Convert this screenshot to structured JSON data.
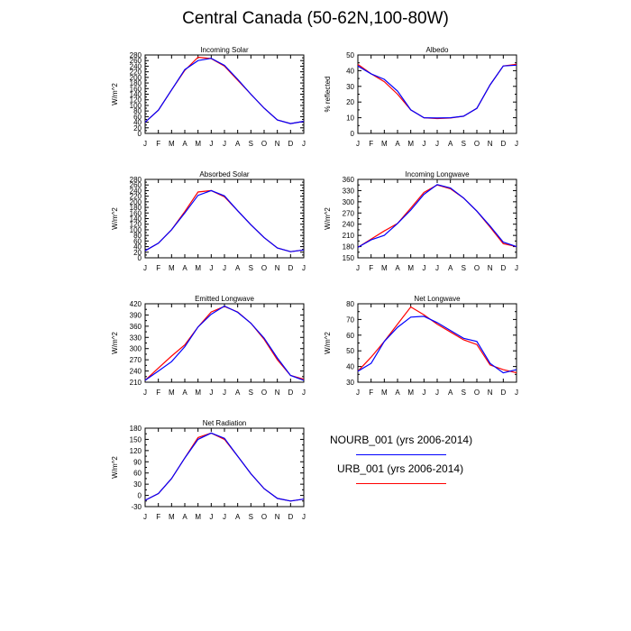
{
  "title": "Central Canada (50-62N,100-80W)",
  "legend": {
    "entries": [
      {
        "label": "NOURB_001 (yrs 2006-2014)",
        "color": "#0000ff"
      },
      {
        "label": "URB_001 (yrs 2006-2014)",
        "color": "#ff0000"
      }
    ]
  },
  "chart_data": [
    {
      "type": "line",
      "title": "Incoming Solar",
      "ylabel": "W/m^2",
      "ylim": [
        0,
        280
      ],
      "yticks": [
        0,
        20,
        40,
        60,
        80,
        100,
        120,
        140,
        160,
        180,
        200,
        220,
        240,
        260,
        280
      ],
      "categories": [
        "J",
        "F",
        "M",
        "A",
        "M",
        "J",
        "J",
        "A",
        "S",
        "O",
        "N",
        "D",
        "J"
      ],
      "series": [
        {
          "name": "URB_001 (yrs 2006-2014)",
          "color": "#ff0000",
          "values": [
            40,
            83,
            155,
            225,
            272,
            267,
            240,
            190,
            140,
            90,
            48,
            35,
            43
          ]
        },
        {
          "name": "NOURB_001 (yrs 2006-2014)",
          "color": "#0000ff",
          "values": [
            40,
            83,
            155,
            228,
            260,
            268,
            243,
            193,
            140,
            90,
            48,
            35,
            43
          ]
        }
      ]
    },
    {
      "type": "line",
      "title": "Albedo",
      "ylabel": "% reflected",
      "ylim": [
        0,
        50
      ],
      "yticks": [
        0,
        10,
        20,
        30,
        40,
        50
      ],
      "categories": [
        "J",
        "F",
        "M",
        "A",
        "M",
        "J",
        "J",
        "A",
        "S",
        "O",
        "N",
        "D",
        "J"
      ],
      "series": [
        {
          "name": "URB_001 (yrs 2006-2014)",
          "color": "#ff0000",
          "values": [
            44,
            38,
            33,
            25,
            15,
            10,
            9.5,
            9.8,
            11,
            16,
            31,
            43,
            44
          ]
        },
        {
          "name": "NOURB_001 (yrs 2006-2014)",
          "color": "#0000ff",
          "values": [
            43,
            38,
            34.5,
            27,
            15,
            10,
            9.8,
            10,
            11,
            16,
            31,
            43,
            43.5
          ]
        }
      ]
    },
    {
      "type": "line",
      "title": "Absorbed Solar",
      "ylabel": "W/m^2",
      "ylim": [
        0,
        280
      ],
      "yticks": [
        0,
        20,
        40,
        60,
        80,
        100,
        120,
        140,
        160,
        180,
        200,
        220,
        240,
        260,
        280
      ],
      "categories": [
        "J",
        "F",
        "M",
        "A",
        "M",
        "J",
        "J",
        "A",
        "S",
        "O",
        "N",
        "D",
        "J"
      ],
      "series": [
        {
          "name": "URB_001 (yrs 2006-2014)",
          "color": "#ff0000",
          "values": [
            25,
            52,
            100,
            165,
            235,
            240,
            218,
            168,
            118,
            72,
            35,
            22,
            28
          ]
        },
        {
          "name": "NOURB_001 (yrs 2006-2014)",
          "color": "#0000ff",
          "values": [
            25,
            52,
            100,
            160,
            223,
            240,
            221,
            168,
            118,
            72,
            35,
            22,
            28
          ]
        }
      ]
    },
    {
      "type": "line",
      "title": "Incoming Longwave",
      "ylabel": "W/m^2",
      "ylim": [
        150,
        360
      ],
      "yticks": [
        150,
        180,
        210,
        240,
        270,
        300,
        330,
        360
      ],
      "categories": [
        "J",
        "F",
        "M",
        "A",
        "M",
        "J",
        "J",
        "A",
        "S",
        "O",
        "N",
        "D",
        "J"
      ],
      "series": [
        {
          "name": "URB_001 (yrs 2006-2014)",
          "color": "#ff0000",
          "values": [
            178,
            200,
            222,
            242,
            283,
            325,
            345,
            335,
            310,
            275,
            232,
            188,
            180
          ]
        },
        {
          "name": "NOURB_001 (yrs 2006-2014)",
          "color": "#0000ff",
          "values": [
            178,
            198,
            210,
            242,
            278,
            320,
            346,
            337,
            310,
            275,
            235,
            192,
            180
          ]
        }
      ]
    },
    {
      "type": "line",
      "title": "Emitted Longwave",
      "ylabel": "W/m^2",
      "ylim": [
        210,
        420
      ],
      "yticks": [
        210,
        240,
        270,
        300,
        330,
        360,
        390,
        420
      ],
      "categories": [
        "J",
        "F",
        "M",
        "A",
        "M",
        "J",
        "J",
        "A",
        "S",
        "O",
        "N",
        "D",
        "J"
      ],
      "series": [
        {
          "name": "URB_001 (yrs 2006-2014)",
          "color": "#ff0000",
          "values": [
            215,
            248,
            280,
            310,
            358,
            398,
            413,
            398,
            368,
            325,
            270,
            228,
            218
          ]
        },
        {
          "name": "NOURB_001 (yrs 2006-2014)",
          "color": "#0000ff",
          "values": [
            215,
            240,
            265,
            305,
            358,
            392,
            414,
            397,
            368,
            328,
            275,
            228,
            215
          ]
        }
      ]
    },
    {
      "type": "line",
      "title": "Net Longwave",
      "ylabel": "W/m^2",
      "ylim": [
        30,
        80
      ],
      "yticks": [
        30,
        40,
        50,
        60,
        70,
        80
      ],
      "categories": [
        "J",
        "F",
        "M",
        "A",
        "M",
        "J",
        "J",
        "A",
        "S",
        "O",
        "N",
        "D",
        "J"
      ],
      "series": [
        {
          "name": "URB_001 (yrs 2006-2014)",
          "color": "#ff0000",
          "values": [
            37,
            46,
            56,
            67,
            78,
            73,
            67,
            62,
            57,
            54,
            41,
            38,
            36
          ]
        },
        {
          "name": "NOURB_001 (yrs 2006-2014)",
          "color": "#0000ff",
          "values": [
            37,
            42,
            56,
            65,
            71.5,
            72,
            68,
            63,
            58,
            56,
            42,
            36,
            38
          ]
        }
      ]
    },
    {
      "type": "line",
      "title": "Net Radiation",
      "ylabel": "W/m^2",
      "ylim": [
        -30,
        180
      ],
      "yticks": [
        -30,
        0,
        30,
        60,
        90,
        120,
        150,
        180
      ],
      "categories": [
        "J",
        "F",
        "M",
        "A",
        "M",
        "J",
        "J",
        "A",
        "S",
        "O",
        "N",
        "D",
        "J"
      ],
      "series": [
        {
          "name": "URB_001 (yrs 2006-2014)",
          "color": "#ff0000",
          "values": [
            -13,
            5,
            45,
            100,
            155,
            167,
            150,
            105,
            58,
            18,
            -8,
            -15,
            -10
          ]
        },
        {
          "name": "NOURB_001 (yrs 2006-2014)",
          "color": "#0000ff",
          "values": [
            -13,
            5,
            45,
            100,
            150,
            167,
            153,
            105,
            58,
            18,
            -8,
            -15,
            -10
          ]
        }
      ]
    }
  ]
}
